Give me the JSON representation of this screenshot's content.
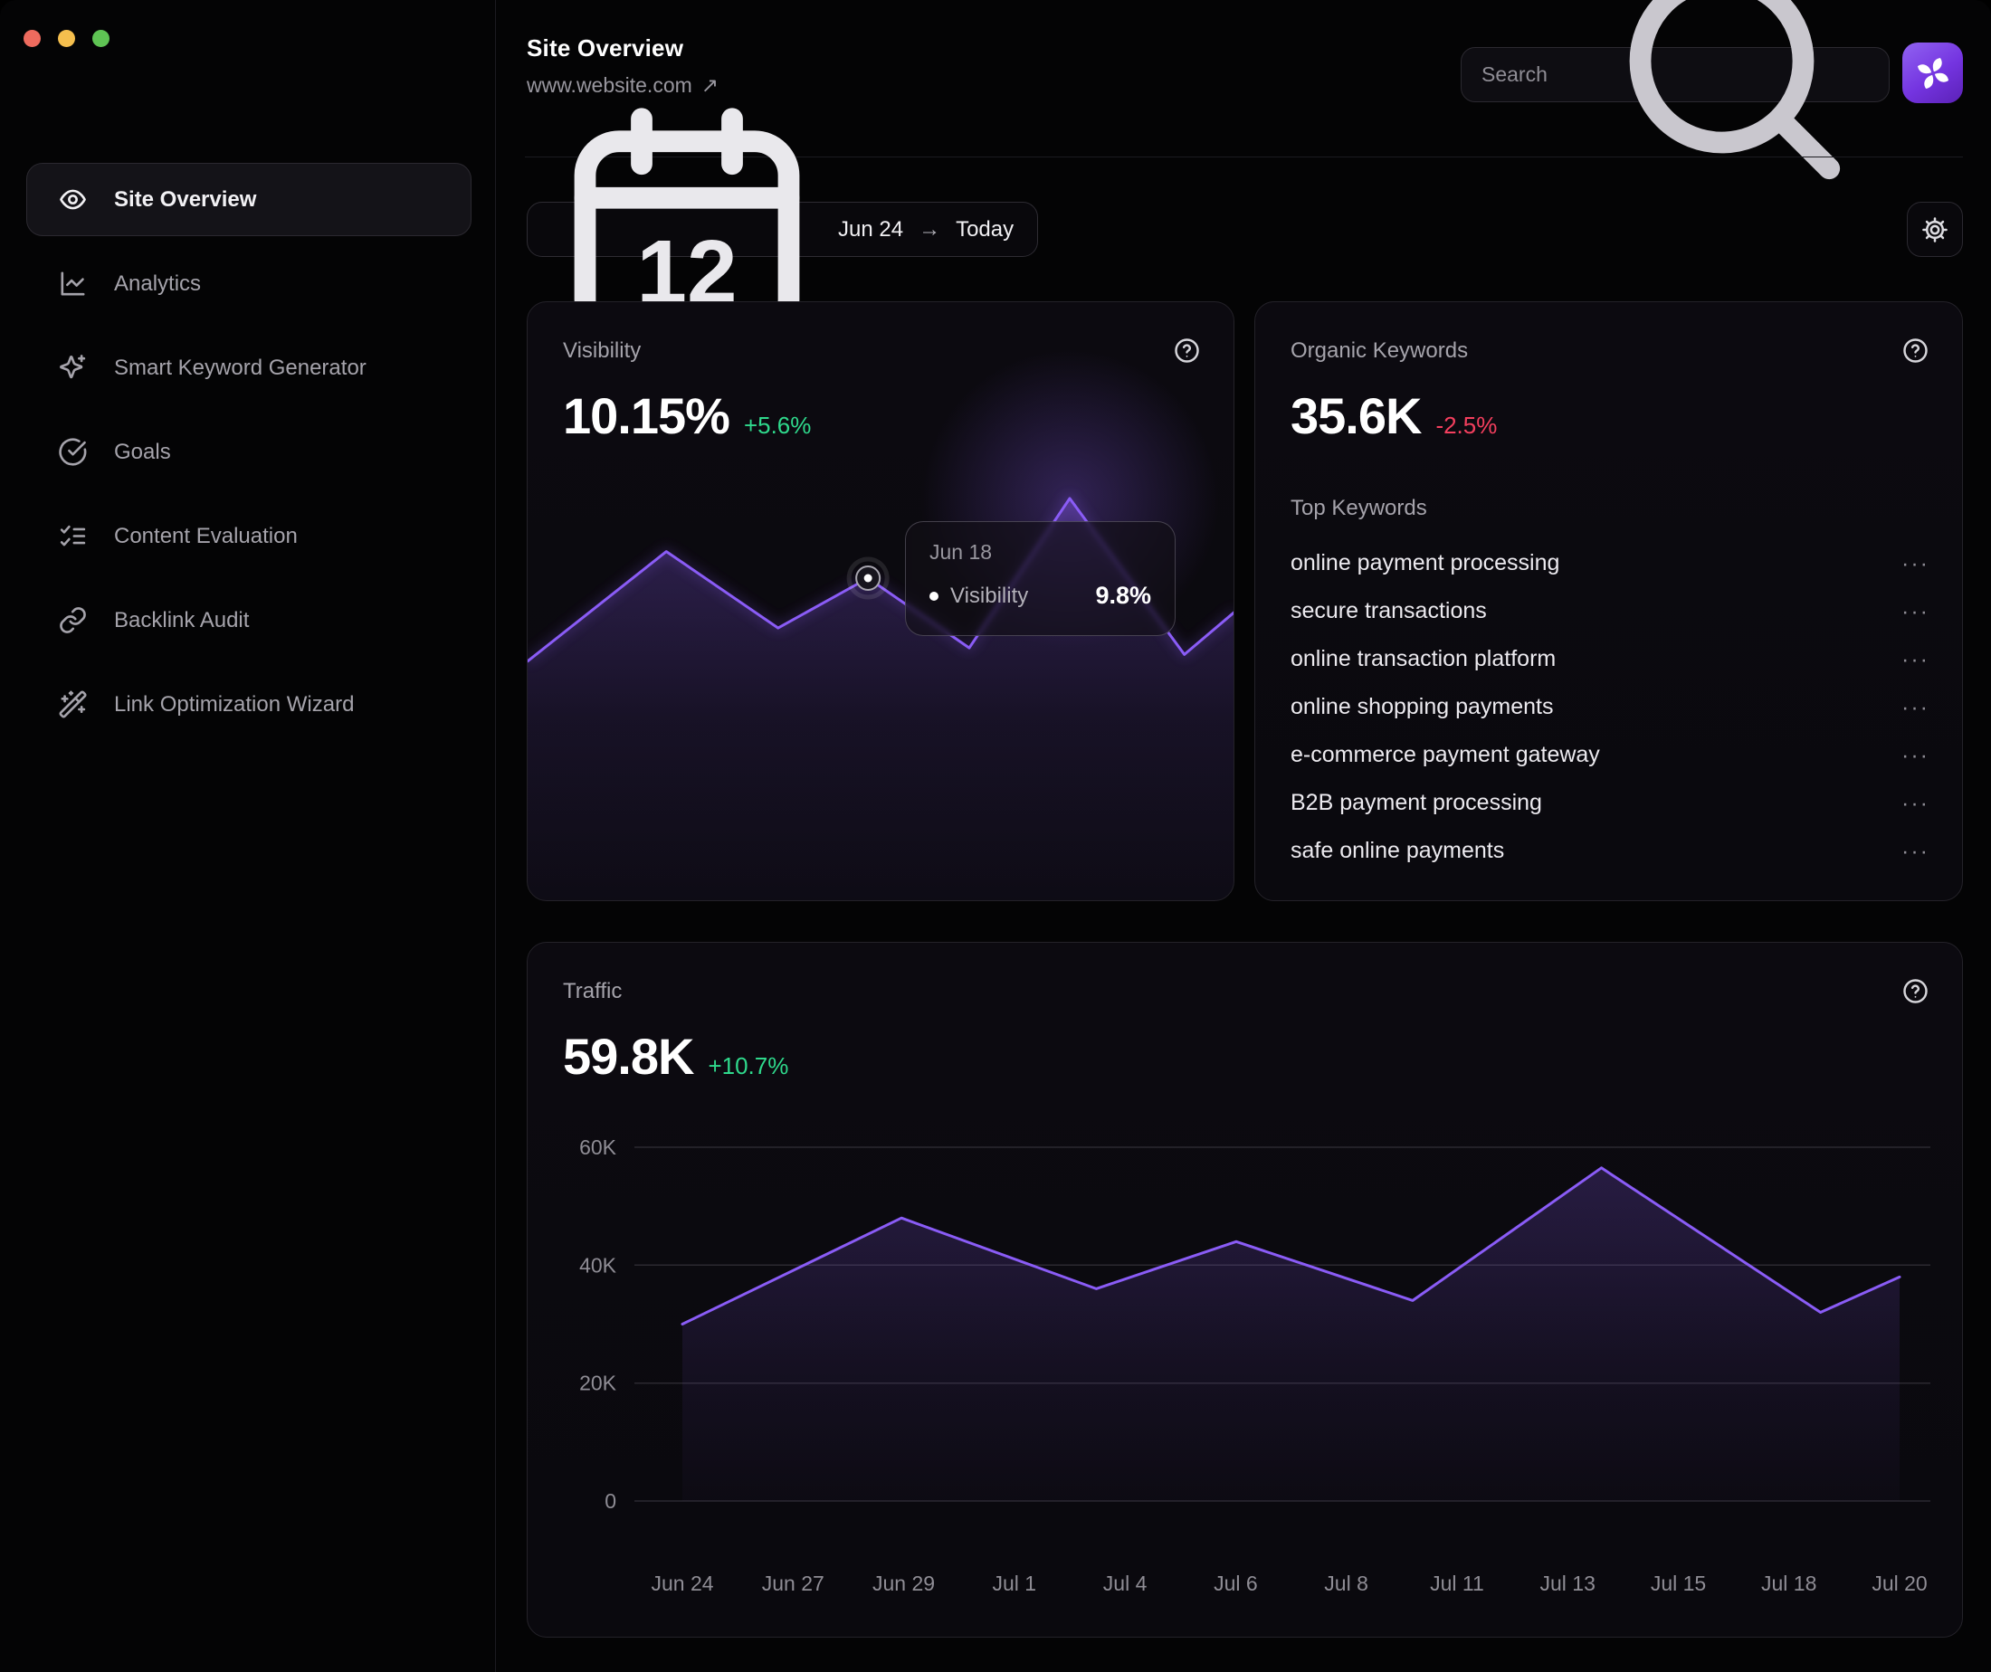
{
  "window": {
    "controls": [
      {
        "name": "close",
        "color": "#ee6b5e"
      },
      {
        "name": "minimize",
        "color": "#f5bf4e"
      },
      {
        "name": "zoom",
        "color": "#5fc454"
      }
    ]
  },
  "sidebar": {
    "items": [
      {
        "label": "Site Overview",
        "icon": "eye",
        "active": true
      },
      {
        "label": "Analytics",
        "icon": "chart-line",
        "active": false
      },
      {
        "label": "Smart Keyword Generator",
        "icon": "sparkles",
        "active": false
      },
      {
        "label": "Goals",
        "icon": "goal",
        "active": false
      },
      {
        "label": "Content Evaluation",
        "icon": "list-checks",
        "active": false
      },
      {
        "label": "Backlink Audit",
        "icon": "link",
        "active": false
      },
      {
        "label": "Link Optimization Wizard",
        "icon": "wand",
        "active": false
      }
    ]
  },
  "header": {
    "title": "Site Overview",
    "site_url": "www.website.com",
    "external_arrow": "↗",
    "search_placeholder": "Search"
  },
  "toolbar": {
    "date_start": "Jun 24",
    "date_arrow": "→",
    "date_end": "Today"
  },
  "cards": {
    "visibility": {
      "title": "Visibility",
      "value": "10.15%",
      "change": "+5.6%",
      "change_color": "#2fd98c"
    },
    "keywords": {
      "title": "Organic Keywords",
      "value": "35.6K",
      "change": "-2.5%",
      "change_color": "#f43f5e",
      "list_title": "Top Keywords",
      "row_menu": "···",
      "items": [
        "online payment processing",
        "secure transactions",
        "online transaction platform",
        "online shopping payments",
        "e-commerce payment gateway",
        "B2B payment processing",
        "safe online payments"
      ]
    },
    "traffic": {
      "title": "Traffic",
      "value": "59.8K",
      "change": "+10.7%",
      "change_color": "#2fd98c"
    }
  },
  "chart_data": [
    {
      "type": "area",
      "title": "Visibility",
      "y_unit": "percent",
      "axes_hidden": true,
      "grid": false,
      "line_color": "#8a5cf6",
      "vertices": [
        {
          "pos": 0.0,
          "value": 7.3
        },
        {
          "pos": 0.196,
          "value": 10.6
        },
        {
          "pos": 0.354,
          "value": 8.3
        },
        {
          "pos": 0.481,
          "value": 9.8
        },
        {
          "pos": 0.624,
          "value": 7.7
        },
        {
          "pos": 0.766,
          "value": 12.2
        },
        {
          "pos": 0.928,
          "value": 7.5
        },
        {
          "pos": 1.0,
          "value": 8.8
        }
      ],
      "hover_index": 3,
      "hover": {
        "label": "Jun 18",
        "series": "Visibility",
        "value": "9.8%"
      }
    },
    {
      "type": "area",
      "title": "Traffic",
      "y_unit": "thousands of visits",
      "grid": true,
      "line_color": "#8a5cf6",
      "ylim": [
        0,
        62
      ],
      "y_ticks": [
        {
          "label": "60K",
          "value": 60
        },
        {
          "label": "40K",
          "value": 40
        },
        {
          "label": "20K",
          "value": 20
        },
        {
          "label": "0",
          "value": 0
        }
      ],
      "x_labels": [
        "Jun 24",
        "Jun 27",
        "Jun 29",
        "Jul 1",
        "Jul 4",
        "Jul 6",
        "Jul 8",
        "Jul 11",
        "Jul 13",
        "Jul 15",
        "Jul 18",
        "Jul 20"
      ],
      "vertices": [
        {
          "pos": 0.0,
          "value": 30
        },
        {
          "pos": 0.18,
          "value": 48
        },
        {
          "pos": 0.34,
          "value": 36
        },
        {
          "pos": 0.455,
          "value": 44
        },
        {
          "pos": 0.6,
          "value": 34
        },
        {
          "pos": 0.755,
          "value": 56.5
        },
        {
          "pos": 0.935,
          "value": 32
        },
        {
          "pos": 1.0,
          "value": 38
        }
      ]
    }
  ]
}
